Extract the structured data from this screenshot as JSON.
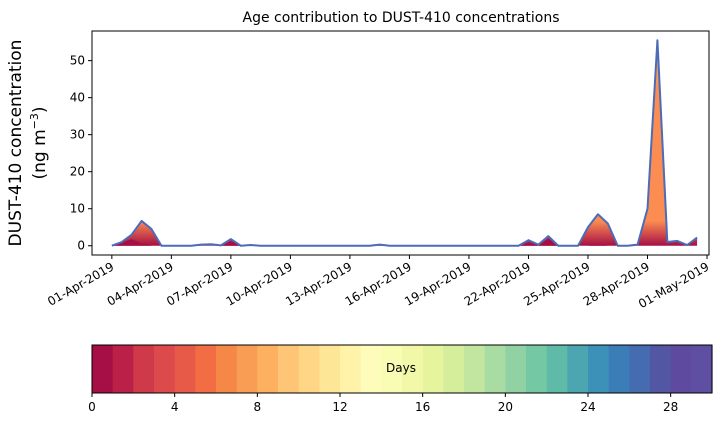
{
  "chart_data": {
    "type": "area",
    "title": "Age contribution to DUST-410 concentrations",
    "ylabel_line1": "DUST-410 concentration",
    "ylabel_unit_base": "(ng m",
    "ylabel_unit_sup": "−3",
    "ylabel_unit_close": ")",
    "xlabel": "",
    "ylim": [
      -2.5,
      58
    ],
    "x_start": "01-Apr-2019",
    "xlim_days": [
      -1.0,
      30.1
    ],
    "x_ticks": [
      "01-Apr-2019",
      "04-Apr-2019",
      "07-Apr-2019",
      "10-Apr-2019",
      "13-Apr-2019",
      "16-Apr-2019",
      "19-Apr-2019",
      "22-Apr-2019",
      "25-Apr-2019",
      "28-Apr-2019",
      "01-May-2019"
    ],
    "y_ticks": [
      0,
      10,
      20,
      30,
      40,
      50
    ],
    "grid": false,
    "series": [
      {
        "values": [
          [
            "01-Apr-2019 00:00",
            0.0
          ],
          [
            "01-Apr-2019 12:00",
            1.0
          ],
          [
            "02-Apr-2019 00:00",
            3.0
          ],
          [
            "02-Apr-2019 12:00",
            6.7
          ],
          [
            "03-Apr-2019 00:00",
            4.5
          ],
          [
            "03-Apr-2019 12:00",
            0.0
          ],
          [
            "04-Apr-2019 00:00",
            0.0
          ],
          [
            "04-Apr-2019 12:00",
            0.0
          ],
          [
            "05-Apr-2019 00:00",
            0.0
          ],
          [
            "05-Apr-2019 12:00",
            0.3
          ],
          [
            "06-Apr-2019 00:00",
            0.4
          ],
          [
            "06-Apr-2019 12:00",
            0.1
          ],
          [
            "07-Apr-2019 00:00",
            1.8
          ],
          [
            "07-Apr-2019 12:00",
            0.0
          ],
          [
            "08-Apr-2019 00:00",
            0.2
          ],
          [
            "08-Apr-2019 12:00",
            0.0
          ],
          [
            "09-Apr-2019 00:00",
            0.0
          ],
          [
            "10-Apr-2019 00:00",
            0.0
          ],
          [
            "12-Apr-2019 00:00",
            0.0
          ],
          [
            "14-Apr-2019 00:00",
            0.0
          ],
          [
            "14-Apr-2019 12:00",
            0.3
          ],
          [
            "15-Apr-2019 00:00",
            0.0
          ],
          [
            "18-Apr-2019 00:00",
            0.0
          ],
          [
            "20-Apr-2019 00:00",
            0.0
          ],
          [
            "21-Apr-2019 12:00",
            0.0
          ],
          [
            "22-Apr-2019 00:00",
            1.5
          ],
          [
            "22-Apr-2019 12:00",
            0.3
          ],
          [
            "23-Apr-2019 00:00",
            2.6
          ],
          [
            "23-Apr-2019 12:00",
            0.0
          ],
          [
            "24-Apr-2019 00:00",
            0.0
          ],
          [
            "24-Apr-2019 12:00",
            0.0
          ],
          [
            "25-Apr-2019 00:00",
            5.0
          ],
          [
            "25-Apr-2019 12:00",
            8.5
          ],
          [
            "26-Apr-2019 00:00",
            6.0
          ],
          [
            "26-Apr-2019 12:00",
            0.0
          ],
          [
            "27-Apr-2019 00:00",
            0.0
          ],
          [
            "27-Apr-2019 12:00",
            0.3
          ],
          [
            "28-Apr-2019 00:00",
            10.0
          ],
          [
            "28-Apr-2019 12:00",
            55.5
          ],
          [
            "29-Apr-2019 00:00",
            1.0
          ],
          [
            "29-Apr-2019 12:00",
            1.3
          ],
          [
            "30-Apr-2019 00:00",
            0.2
          ],
          [
            "30-Apr-2019 12:00",
            2.2
          ]
        ]
      },
      {
        "values": [
          [
            "01-Apr-2019 00:00",
            0.0
          ],
          [
            "01-Apr-2019 12:00",
            0.8
          ],
          [
            "02-Apr-2019 00:00",
            1.8
          ],
          [
            "02-Apr-2019 12:00",
            0.6
          ],
          [
            "03-Apr-2019 00:00",
            0.0
          ],
          [
            "03-Apr-2019 12:00",
            0.0
          ],
          [
            "06-Apr-2019 12:00",
            0.0
          ],
          [
            "07-Apr-2019 00:00",
            1.2
          ],
          [
            "07-Apr-2019 12:00",
            0.0
          ],
          [
            "21-Apr-2019 12:00",
            0.0
          ],
          [
            "22-Apr-2019 00:00",
            0.9
          ],
          [
            "22-Apr-2019 12:00",
            0.0
          ],
          [
            "23-Apr-2019 00:00",
            2.0
          ],
          [
            "23-Apr-2019 12:00",
            0.0
          ],
          [
            "25-Apr-2019 00:00",
            0.0
          ],
          [
            "25-Apr-2019 12:00",
            0.4
          ],
          [
            "26-Apr-2019 00:00",
            0.0
          ],
          [
            "30-Apr-2019 12:00",
            0.0
          ]
        ]
      }
    ],
    "colorbar": {
      "label": "Days",
      "ticks": [
        "0",
        "4",
        "8",
        "12",
        "16",
        "20",
        "24",
        "28"
      ],
      "min": 0,
      "max": 30,
      "n_bins": 30,
      "colors": [
        "#a50f45",
        "#bb2049",
        "#cf3a4a",
        "#dc4a4c",
        "#e85a48",
        "#f26d43",
        "#f58747",
        "#f99c54",
        "#fdb160",
        "#fdc575",
        "#fed685",
        "#fee697",
        "#fef3a9",
        "#fefcbb",
        "#f9fcb3",
        "#f1f9a9",
        "#e6f59d",
        "#d5ee9b",
        "#c2e69f",
        "#a9dca3",
        "#91d2a4",
        "#75c8a4",
        "#5fbaa8",
        "#4ca6b1",
        "#3c91b9",
        "#3b7db7",
        "#456cb0",
        "#5356a3",
        "#5e4a9e",
        "#5e4fa2"
      ]
    },
    "series_colors": {
      "outline": "#4c6cb8",
      "fill_high": "#f7c46b",
      "fill_mid": "#fb8c52",
      "fill_low": "#a50f45"
    }
  }
}
